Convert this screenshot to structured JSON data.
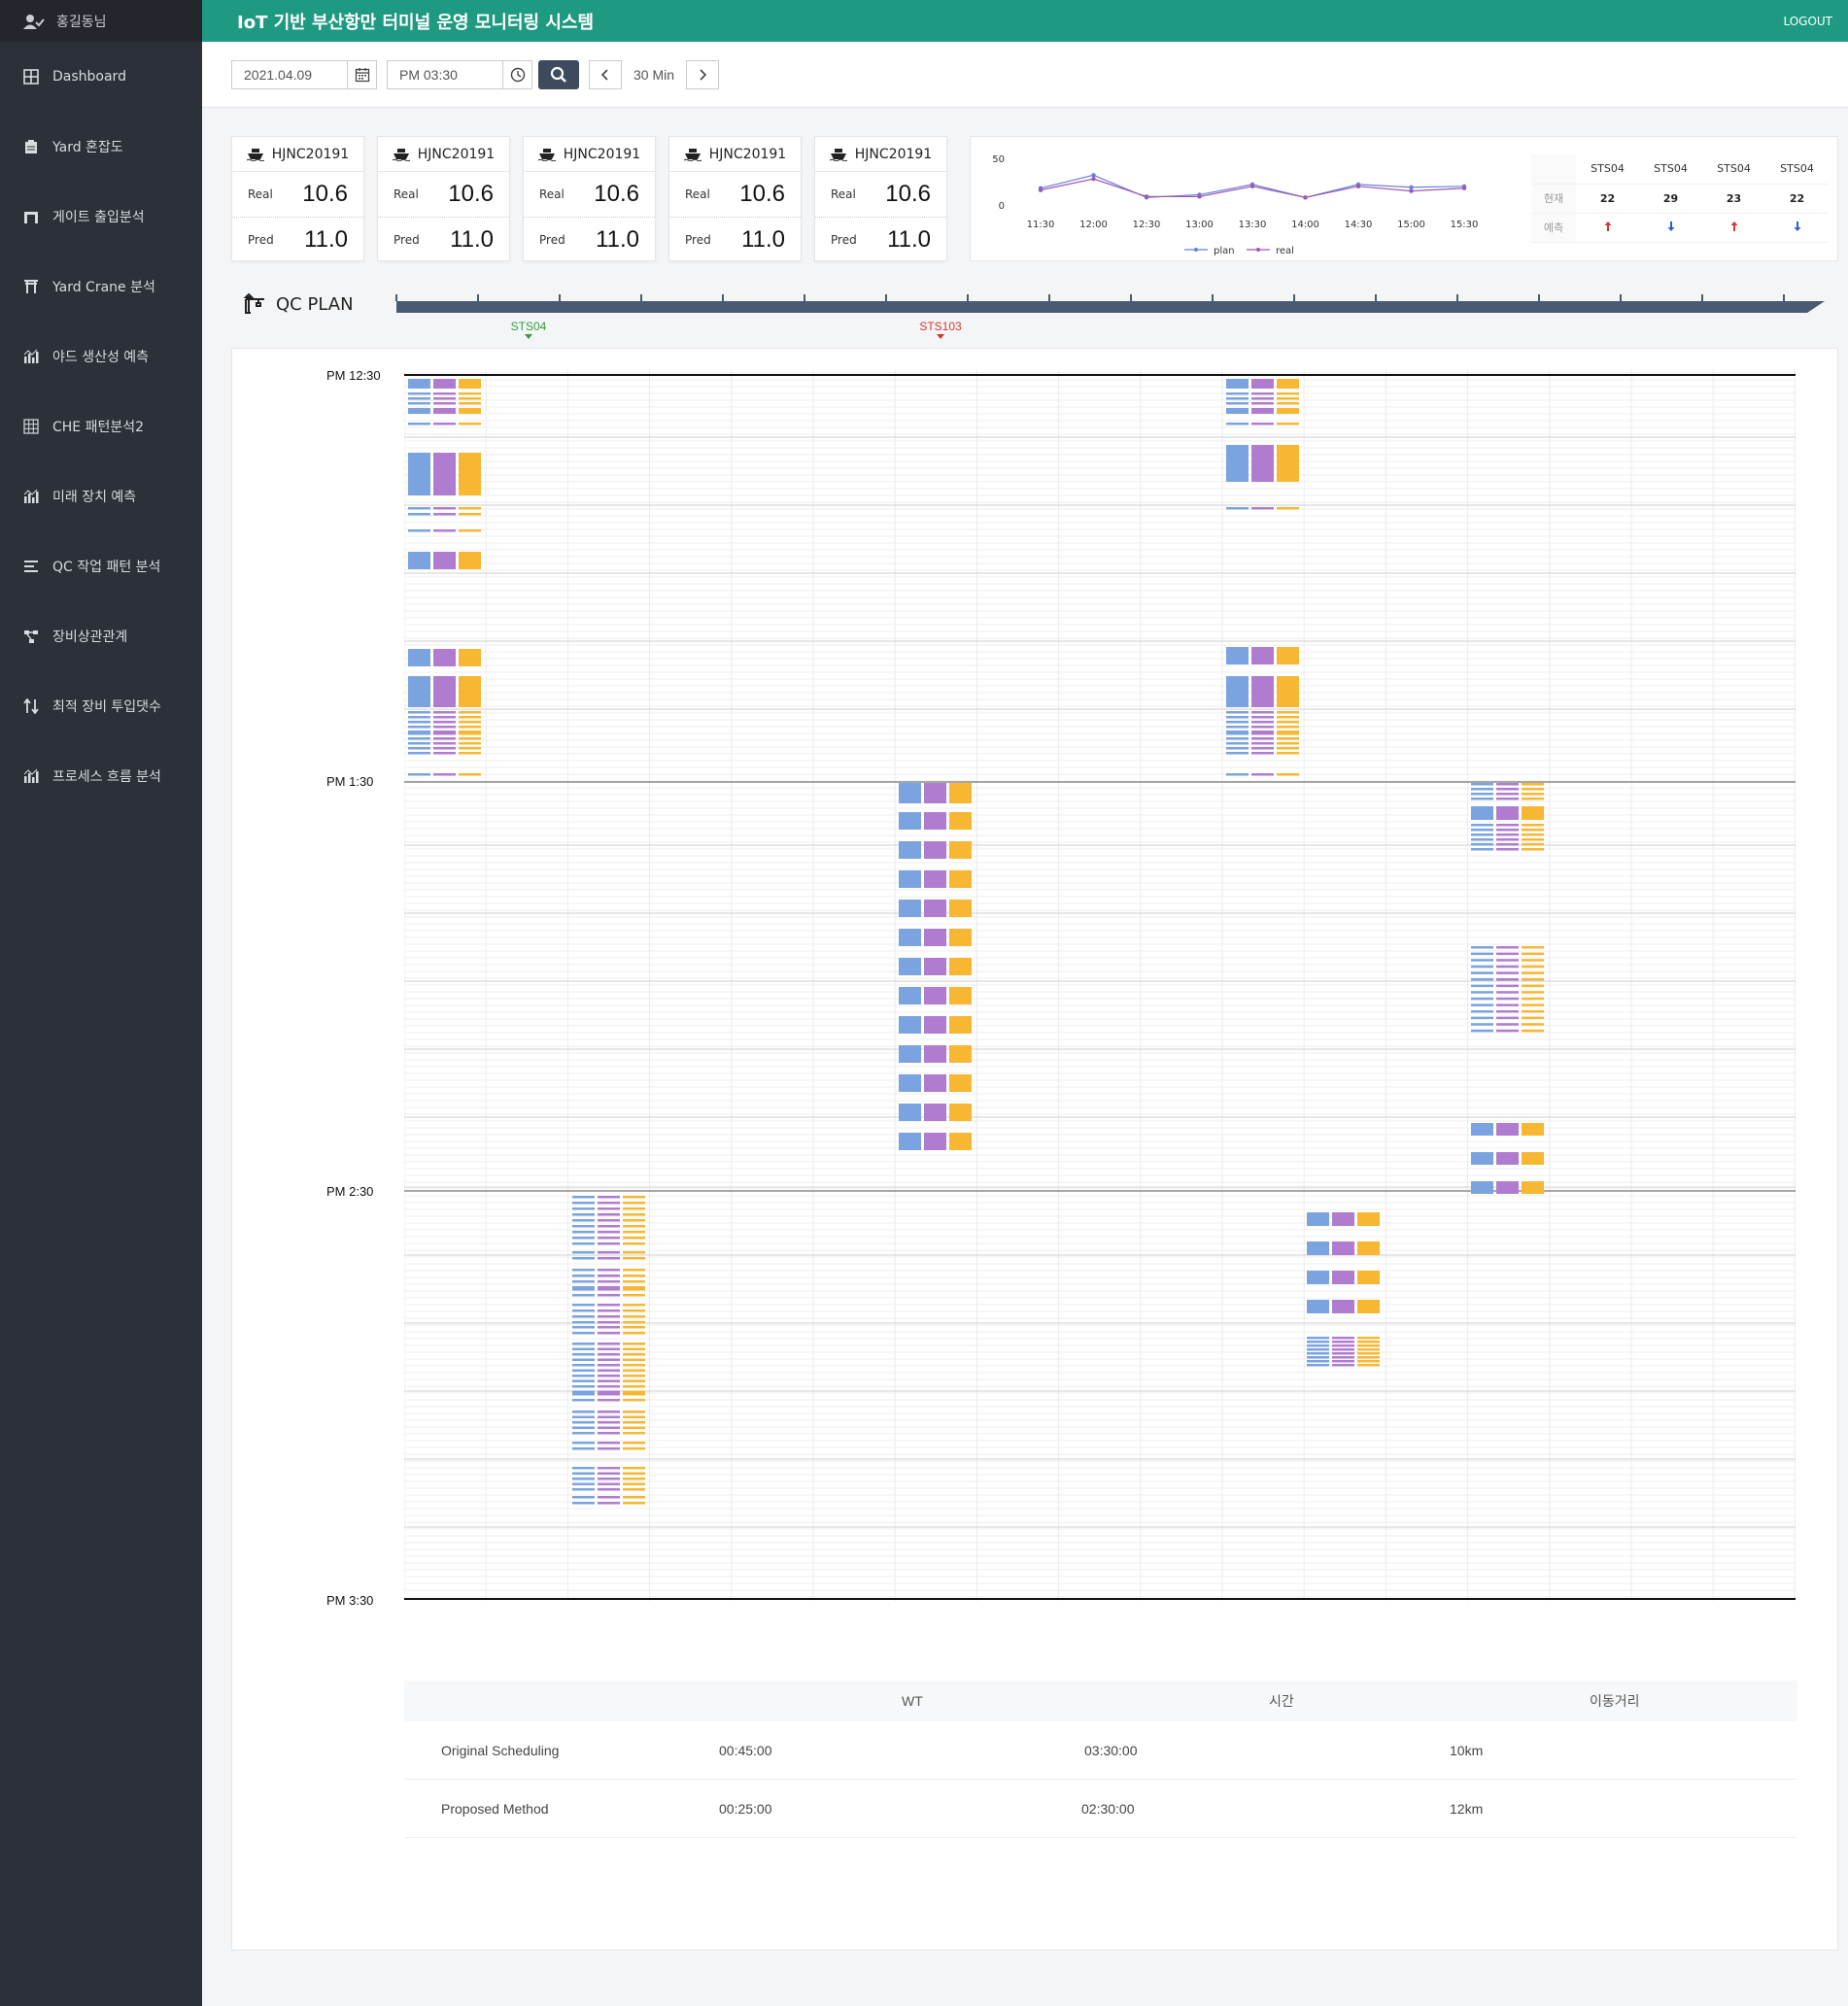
{
  "user": {
    "name": "홍길동님",
    "icon": "user-check-icon"
  },
  "header": {
    "title": "IoT 기반 부산항만 터미널 운영 모니터링 시스템",
    "logout": "LOGOUT"
  },
  "sidebar": {
    "items": [
      {
        "label": "Dashboard",
        "icon": "grid-icon"
      },
      {
        "label": "Yard 혼잡도",
        "icon": "clipboard-icon"
      },
      {
        "label": "게이트 출입분석",
        "icon": "gate-icon"
      },
      {
        "label": "Yard Crane 분석",
        "icon": "torii-icon"
      },
      {
        "label": "야드 생산성 예측",
        "icon": "bar-chart-icon"
      },
      {
        "label": "CHE 패턴분석2",
        "icon": "table-grid-icon"
      },
      {
        "label": "미래 장치 예측",
        "icon": "bar-chart-icon"
      },
      {
        "label": "QC 작업 패턴 분석",
        "icon": "align-left-icon"
      },
      {
        "label": "장비상관관계",
        "icon": "network-icon"
      },
      {
        "label": "최적 장비 투입댓수",
        "icon": "sort-arrows-icon"
      },
      {
        "label": "프로세스 흐름 분석",
        "icon": "bar-chart-icon"
      }
    ]
  },
  "toolbar": {
    "date": "2021.04.09",
    "time": "PM 03:30",
    "interval": "30 Min"
  },
  "cards": [
    {
      "name": "HJNC20191",
      "real_label": "Real",
      "real": "10.6",
      "pred_label": "Pred",
      "pred": "11.0"
    },
    {
      "name": "HJNC20191",
      "real_label": "Real",
      "real": "10.6",
      "pred_label": "Pred",
      "pred": "11.0"
    },
    {
      "name": "HJNC20191",
      "real_label": "Real",
      "real": "10.6",
      "pred_label": "Pred",
      "pred": "11.0"
    },
    {
      "name": "HJNC20191",
      "real_label": "Real",
      "real": "10.6",
      "pred_label": "Pred",
      "pred": "11.0"
    },
    {
      "name": "HJNC20191",
      "real_label": "Real",
      "real": "10.6",
      "pred_label": "Pred",
      "pred": "11.0"
    }
  ],
  "chart_data": {
    "type": "line",
    "x": [
      "11:30",
      "12:00",
      "12:30",
      "13:00",
      "13:30",
      "14:00",
      "14:30",
      "15:00",
      "15:30"
    ],
    "series": [
      {
        "name": "plan",
        "color": "#6b7fd7",
        "values": [
          18,
          32,
          8,
          11,
          22,
          8,
          22,
          19,
          20
        ]
      },
      {
        "name": "real",
        "color": "#9b59b6",
        "values": [
          16,
          28,
          9,
          9,
          20,
          8,
          20,
          15,
          18
        ]
      }
    ],
    "yticks": [
      0,
      50
    ],
    "ylim": [
      0,
      50
    ],
    "legend": "bottom"
  },
  "sts_table": {
    "headers": [
      "STS04",
      "STS04",
      "STS04",
      "STS04"
    ],
    "row_labels": [
      "현재",
      "예측"
    ],
    "current": [
      "22",
      "29",
      "23",
      "22"
    ],
    "forecast": [
      "up",
      "down",
      "up",
      "down"
    ]
  },
  "qc_plan": {
    "title": "QC PLAN",
    "markers": [
      {
        "label": "STS04",
        "color": "#2e9e3a"
      },
      {
        "label": "STS103",
        "color": "#d9352a"
      }
    ],
    "time_labels": [
      "PM 12:30",
      "PM  1:30",
      "PM  2:30",
      "PM  3:30"
    ],
    "colors": {
      "blue": "#7aa3e0",
      "purple": "#b07cd0",
      "orange": "#f7b733"
    }
  },
  "summary": {
    "headers": [
      "WT",
      "시간",
      "이동거리"
    ],
    "rows": [
      {
        "name": "Original Scheduling",
        "wt": "00:45:00",
        "time": "03:30:00",
        "dist": "10km"
      },
      {
        "name": "Proposed Method",
        "wt": "00:25:00",
        "time": "02:30:00",
        "dist": "12km"
      }
    ]
  }
}
